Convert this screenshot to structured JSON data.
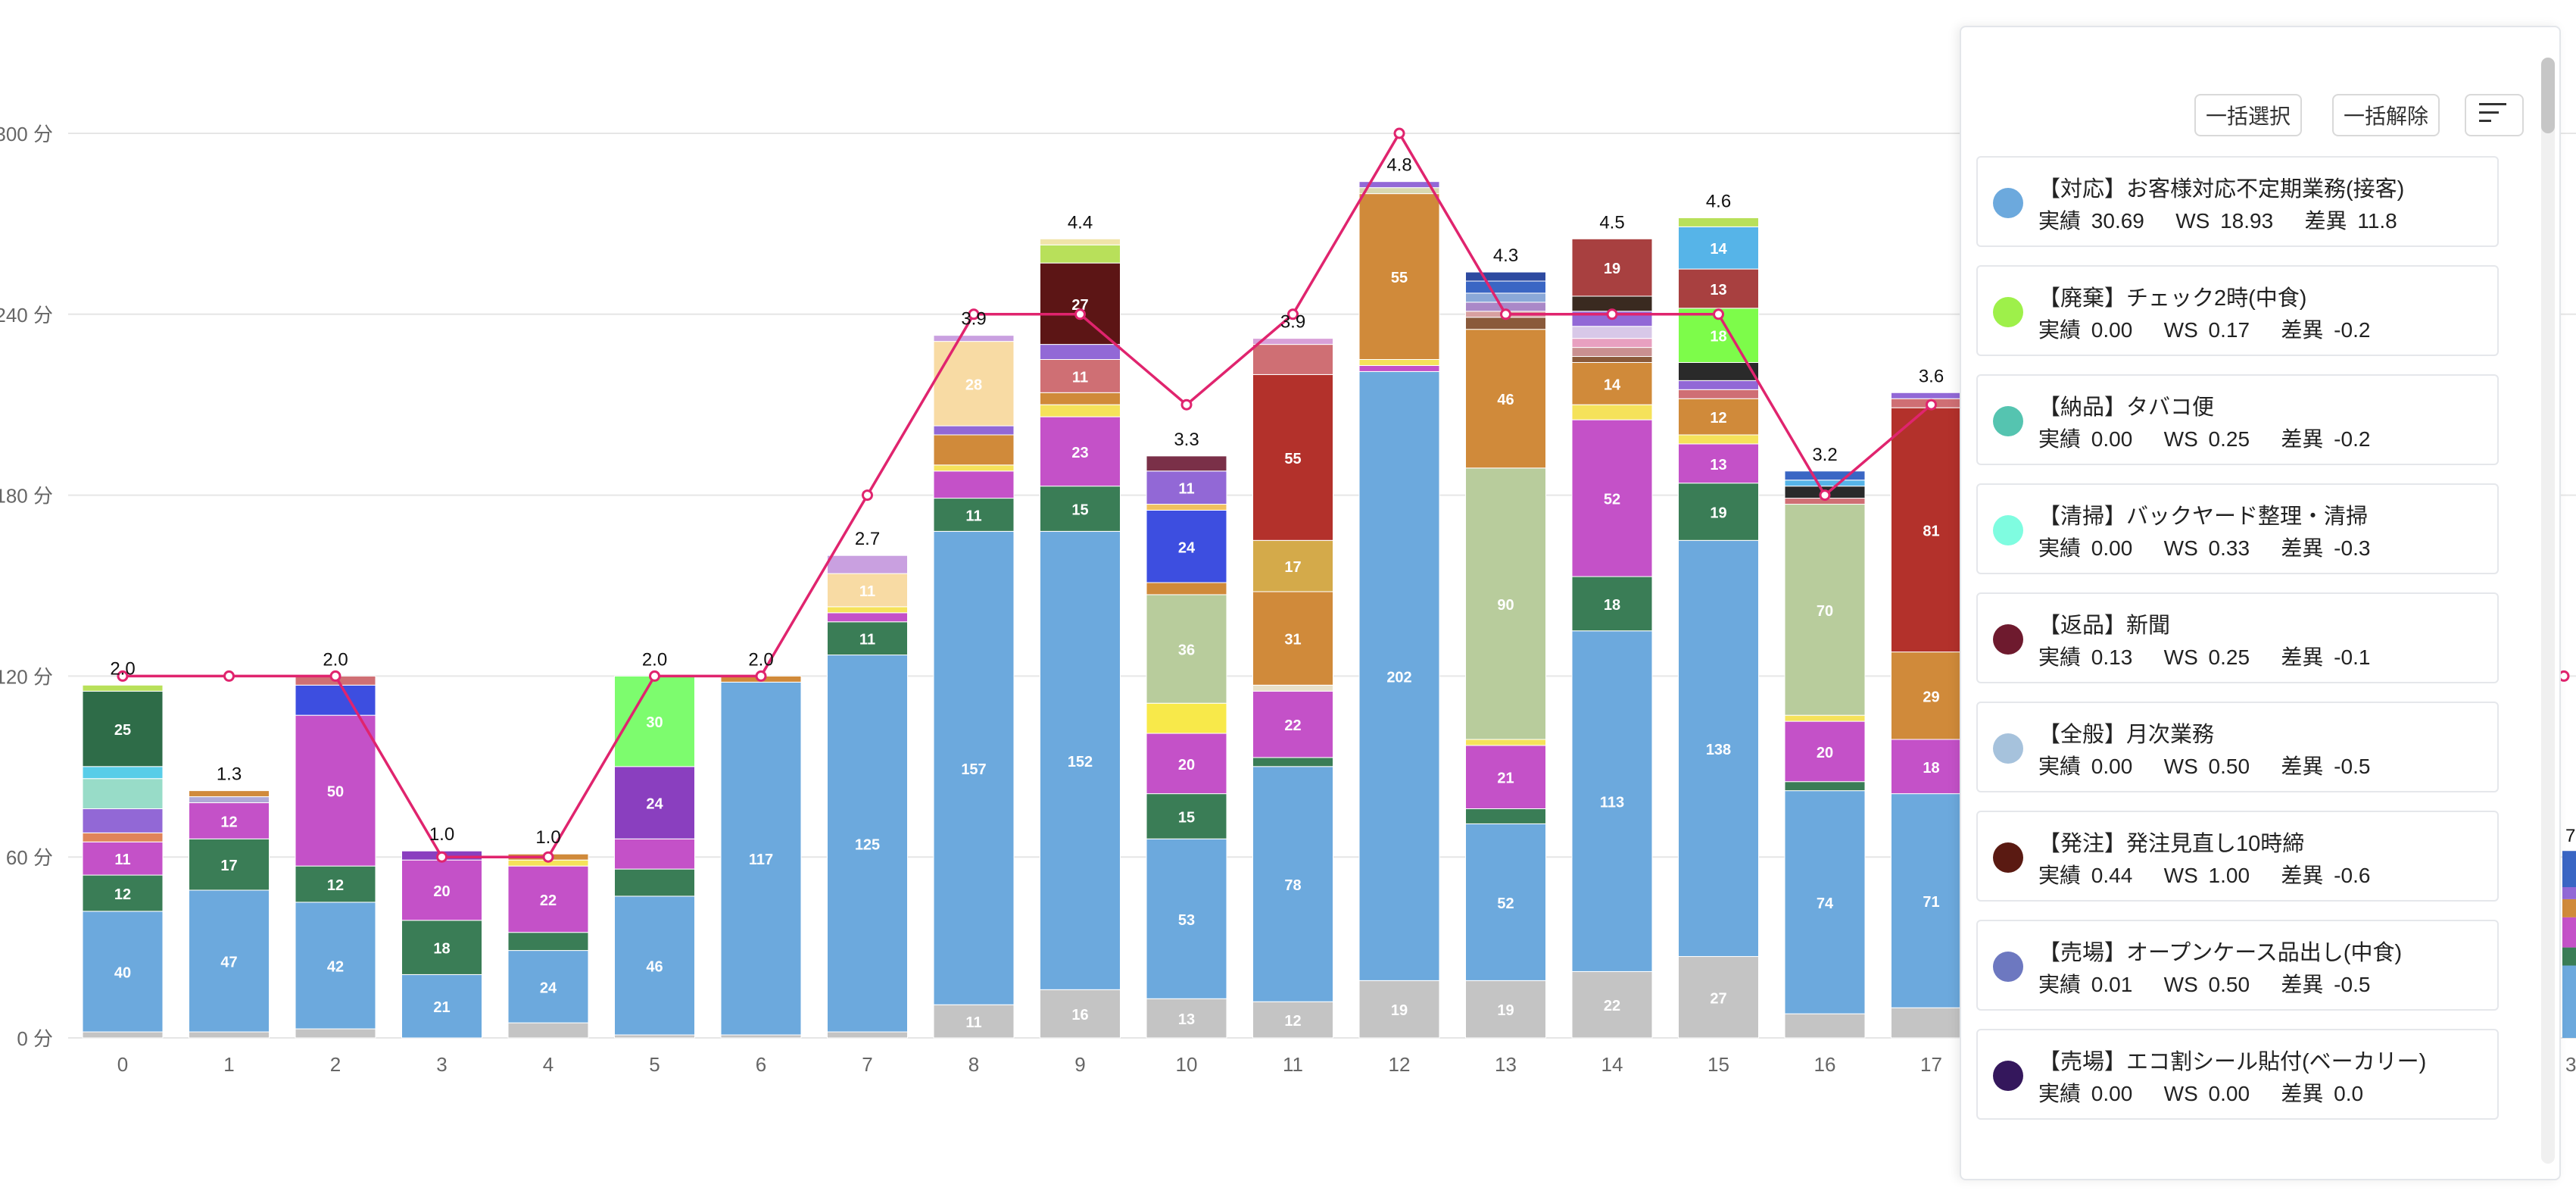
{
  "panel": {
    "select_all": "一括選択",
    "deselect_all": "一括解除",
    "sort_icon": "sort-lines-icon",
    "items": [
      {
        "title": "【対応】お客様対応不定期業務(接客)",
        "actual_label": "実績",
        "actual": "30.69",
        "ws_label": "WS",
        "ws": "18.93",
        "diff_label": "差異",
        "diff": "11.8",
        "color": "#6ca9dd"
      },
      {
        "title": "【廃棄】チェック2時(中食)",
        "actual_label": "実績",
        "actual": "0.00",
        "ws_label": "WS",
        "ws": "0.17",
        "diff_label": "差異",
        "diff": "-0.2",
        "color": "#9ef04a"
      },
      {
        "title": "【納品】タバコ便",
        "actual_label": "実績",
        "actual": "0.00",
        "ws_label": "WS",
        "ws": "0.25",
        "diff_label": "差異",
        "diff": "-0.2",
        "color": "#55c4b0"
      },
      {
        "title": "【清掃】バックヤード整理・清掃",
        "actual_label": "実績",
        "actual": "0.00",
        "ws_label": "WS",
        "ws": "0.33",
        "diff_label": "差異",
        "diff": "-0.3",
        "color": "#7ffce0"
      },
      {
        "title": "【返品】新聞",
        "actual_label": "実績",
        "actual": "0.13",
        "ws_label": "WS",
        "ws": "0.25",
        "diff_label": "差異",
        "diff": "-0.1",
        "color": "#6e1a2e"
      },
      {
        "title": "【全般】月次業務",
        "actual_label": "実績",
        "actual": "0.00",
        "ws_label": "WS",
        "ws": "0.50",
        "diff_label": "差異",
        "diff": "-0.5",
        "color": "#a6c2dc"
      },
      {
        "title": "【発注】発注見直し10時締",
        "actual_label": "実績",
        "actual": "0.44",
        "ws_label": "WS",
        "ws": "1.00",
        "diff_label": "差異",
        "diff": "-0.6",
        "color": "#5a1a12"
      },
      {
        "title": "【売場】オープンケース品出し(中食)",
        "actual_label": "実績",
        "actual": "0.01",
        "ws_label": "WS",
        "ws": "0.50",
        "diff_label": "差異",
        "diff": "-0.5",
        "color": "#6d78c0"
      },
      {
        "title": "【売場】エコ割シール貼付(ベーカリー)",
        "actual_label": "実績",
        "actual": "0.00",
        "ws_label": "WS",
        "ws": "0.00",
        "diff_label": "差異",
        "diff": "0.0",
        "color": "#34175c"
      }
    ]
  },
  "chart_data": {
    "type": "bar",
    "stacked": true,
    "y_unit": "分",
    "ylim": [
      0,
      300
    ],
    "yticks": [
      0,
      60,
      120,
      180,
      240,
      300
    ],
    "y_tick_labels": [
      "0 分",
      "60 分",
      "120 分",
      "180 分",
      "240 分",
      "300 分"
    ],
    "categories": [
      "0",
      "1",
      "2",
      "3",
      "4",
      "5",
      "6",
      "7",
      "8",
      "9",
      "10",
      "11",
      "12",
      "13",
      "14",
      "15",
      "16",
      "17"
    ],
    "partial_right_labels": [
      "7",
      "3"
    ],
    "bars": [
      {
        "total_label": "2.0",
        "segments": [
          [
            2,
            "#c4c4c4",
            ""
          ],
          [
            40,
            "#6ca9dd",
            "40"
          ],
          [
            12,
            "#3a7d56",
            "12"
          ],
          [
            11,
            "#c451c8",
            "11"
          ],
          [
            3,
            "#e0845a",
            ""
          ],
          [
            8,
            "#9268d6",
            ""
          ],
          [
            10,
            "#98dcc8",
            ""
          ],
          [
            4,
            "#58cde8",
            ""
          ],
          [
            25,
            "#2e6c48",
            "25"
          ],
          [
            2,
            "#b8e05a",
            ""
          ]
        ]
      },
      {
        "total_label": "1.3",
        "segments": [
          [
            2,
            "#c4c4c4",
            ""
          ],
          [
            47,
            "#6ca9dd",
            "47"
          ],
          [
            17,
            "#3a7d56",
            "17"
          ],
          [
            12,
            "#c451c8",
            "12"
          ],
          [
            2,
            "#b0a8d6",
            ""
          ],
          [
            2,
            "#d08a3a",
            ""
          ]
        ]
      },
      {
        "total_label": "2.0",
        "segments": [
          [
            3,
            "#c4c4c4",
            ""
          ],
          [
            42,
            "#6ca9dd",
            "42"
          ],
          [
            12,
            "#3a7d56",
            "12"
          ],
          [
            50,
            "#c451c8",
            "50"
          ],
          [
            10,
            "#3d4ee0",
            ""
          ],
          [
            3,
            "#cf6f74",
            ""
          ]
        ]
      },
      {
        "total_label": "1.0",
        "segments": [
          [
            21,
            "#6ca9dd",
            "21"
          ],
          [
            18,
            "#3a7d56",
            "18"
          ],
          [
            20,
            "#c451c8",
            "20"
          ],
          [
            3,
            "#8a3fbf",
            ""
          ]
        ]
      },
      {
        "total_label": "1.0",
        "segments": [
          [
            5,
            "#c4c4c4",
            ""
          ],
          [
            24,
            "#6ca9dd",
            "24"
          ],
          [
            6,
            "#3a7d56",
            ""
          ],
          [
            22,
            "#c451c8",
            "22"
          ],
          [
            2,
            "#f5e25a",
            ""
          ],
          [
            2,
            "#d08a3a",
            ""
          ]
        ]
      },
      {
        "total_label": "2.0",
        "segments": [
          [
            1,
            "#c4c4c4",
            ""
          ],
          [
            46,
            "#6ca9dd",
            "46"
          ],
          [
            9,
            "#3a7d56",
            ""
          ],
          [
            10,
            "#c451c8",
            ""
          ],
          [
            24,
            "#8a3fbf",
            "24"
          ],
          [
            30,
            "#7dfc6e",
            "30"
          ]
        ]
      },
      {
        "total_label": "2.0",
        "segments": [
          [
            1,
            "#c4c4c4",
            ""
          ],
          [
            117,
            "#6ca9dd",
            "117"
          ],
          [
            2,
            "#d08a3a",
            ""
          ]
        ]
      },
      {
        "total_label": "2.7",
        "segments": [
          [
            2,
            "#c4c4c4",
            ""
          ],
          [
            125,
            "#6ca9dd",
            "125"
          ],
          [
            11,
            "#3a7d56",
            "11"
          ],
          [
            3,
            "#c451c8",
            ""
          ],
          [
            2,
            "#f5e25a",
            ""
          ],
          [
            11,
            "#f8dba4",
            "11"
          ],
          [
            6,
            "#c9a0e0",
            ""
          ]
        ]
      },
      {
        "total_label": "3.9",
        "segments": [
          [
            11,
            "#c4c4c4",
            "11"
          ],
          [
            157,
            "#6ca9dd",
            "157"
          ],
          [
            11,
            "#3a7d56",
            "11"
          ],
          [
            9,
            "#c451c8",
            ""
          ],
          [
            2,
            "#f5e25a",
            ""
          ],
          [
            10,
            "#d08a3a",
            ""
          ],
          [
            3,
            "#9268d6",
            ""
          ],
          [
            28,
            "#f8dba4",
            "28"
          ],
          [
            2,
            "#c9a0e0",
            ""
          ]
        ]
      },
      {
        "total_label": "4.4",
        "segments": [
          [
            16,
            "#c4c4c4",
            "16"
          ],
          [
            152,
            "#6ca9dd",
            "152"
          ],
          [
            15,
            "#3a7d56",
            "15"
          ],
          [
            23,
            "#c451c8",
            "23"
          ],
          [
            4,
            "#f5e25a",
            ""
          ],
          [
            4,
            "#d08a3a",
            ""
          ],
          [
            11,
            "#cf6f74",
            "11"
          ],
          [
            5,
            "#9268d6",
            ""
          ],
          [
            27,
            "#5c1515",
            "27"
          ],
          [
            6,
            "#b8e05a",
            ""
          ],
          [
            2,
            "#f0e4a8",
            ""
          ]
        ]
      },
      {
        "total_label": "3.3",
        "segments": [
          [
            13,
            "#c4c4c4",
            "13"
          ],
          [
            53,
            "#6ca9dd",
            "53"
          ],
          [
            15,
            "#3a7d56",
            "15"
          ],
          [
            20,
            "#c451c8",
            "20"
          ],
          [
            10,
            "#f8e94a",
            ""
          ],
          [
            36,
            "#b8cc9c",
            "36"
          ],
          [
            4,
            "#d08a3a",
            ""
          ],
          [
            24,
            "#3d4ee0",
            "24"
          ],
          [
            2,
            "#f0c060",
            ""
          ],
          [
            11,
            "#9268d6",
            "11"
          ],
          [
            5,
            "#7a3048",
            ""
          ]
        ]
      },
      {
        "total_label": "3.9",
        "segments": [
          [
            12,
            "#c4c4c4",
            "12"
          ],
          [
            78,
            "#6ca9dd",
            "78"
          ],
          [
            3,
            "#3a7d56",
            ""
          ],
          [
            22,
            "#c451c8",
            "22"
          ],
          [
            2,
            "#e8e0c8",
            ""
          ],
          [
            31,
            "#d08a3a",
            "31"
          ],
          [
            17,
            "#d4aa4a",
            "17"
          ],
          [
            55,
            "#b3312b",
            "55"
          ],
          [
            10,
            "#cf6f74",
            ""
          ],
          [
            2,
            "#d8a0d8",
            ""
          ]
        ]
      },
      {
        "total_label": "4.8",
        "segments": [
          [
            19,
            "#c4c4c4",
            "19"
          ],
          [
            202,
            "#6ca9dd",
            "202"
          ],
          [
            2,
            "#c451c8",
            ""
          ],
          [
            2,
            "#f5e25a",
            ""
          ],
          [
            55,
            "#d08a3a",
            "55"
          ],
          [
            2,
            "#d8d8b0",
            ""
          ],
          [
            2,
            "#9268d6",
            ""
          ]
        ]
      },
      {
        "total_label": "4.3",
        "segments": [
          [
            19,
            "#c4c4c4",
            "19"
          ],
          [
            52,
            "#6ca9dd",
            "52"
          ],
          [
            5,
            "#3a7d56",
            ""
          ],
          [
            21,
            "#c451c8",
            "21"
          ],
          [
            2,
            "#f5e25a",
            ""
          ],
          [
            90,
            "#b8cc9c",
            "90"
          ],
          [
            46,
            "#d08a3a",
            "46"
          ],
          [
            4,
            "#8a5a3a",
            ""
          ],
          [
            2,
            "#d8a0a0",
            ""
          ],
          [
            3,
            "#aa88c8",
            ""
          ],
          [
            3,
            "#8aa8d8",
            ""
          ],
          [
            4,
            "#3a66c4",
            ""
          ],
          [
            3,
            "#2d4aa0",
            ""
          ]
        ]
      },
      {
        "total_label": "4.5",
        "segments": [
          [
            22,
            "#c4c4c4",
            "22"
          ],
          [
            113,
            "#6ca9dd",
            "113"
          ],
          [
            18,
            "#3a7d56",
            "18"
          ],
          [
            52,
            "#c451c8",
            "52"
          ],
          [
            5,
            "#f5e25a",
            ""
          ],
          [
            14,
            "#d08a3a",
            "14"
          ],
          [
            2,
            "#8a5a3a",
            ""
          ],
          [
            3,
            "#c99090",
            ""
          ],
          [
            3,
            "#e8a0c0",
            ""
          ],
          [
            4,
            "#d8c8e8",
            ""
          ],
          [
            5,
            "#9268d6",
            ""
          ],
          [
            5,
            "#3a2a20",
            ""
          ],
          [
            19,
            "#a84040",
            "19"
          ]
        ]
      },
      {
        "total_label": "4.6",
        "segments": [
          [
            27,
            "#c4c4c4",
            "27"
          ],
          [
            138,
            "#6ca9dd",
            "138"
          ],
          [
            19,
            "#3a7d56",
            "19"
          ],
          [
            13,
            "#c451c8",
            "13"
          ],
          [
            3,
            "#f5e25a",
            ""
          ],
          [
            12,
            "#d08a3a",
            "12"
          ],
          [
            3,
            "#cf6f74",
            ""
          ],
          [
            3,
            "#9268d6",
            ""
          ],
          [
            6,
            "#2a2a2a",
            ""
          ],
          [
            18,
            "#7dfc4a",
            "18"
          ],
          [
            13,
            "#a84040",
            "13"
          ],
          [
            14,
            "#56b4e8",
            "14"
          ],
          [
            3,
            "#b8e05a",
            ""
          ]
        ]
      },
      {
        "total_label": "3.2",
        "segments": [
          [
            8,
            "#c4c4c4",
            ""
          ],
          [
            74,
            "#6ca9dd",
            "74"
          ],
          [
            3,
            "#3a7d56",
            ""
          ],
          [
            20,
            "#c451c8",
            "20"
          ],
          [
            2,
            "#f5e25a",
            ""
          ],
          [
            70,
            "#b8cc9c",
            "70"
          ],
          [
            2,
            "#cf6f74",
            ""
          ],
          [
            4,
            "#2a2a2a",
            ""
          ],
          [
            2,
            "#56b4e8",
            ""
          ],
          [
            3,
            "#3a66c4",
            ""
          ]
        ]
      },
      {
        "total_label": "3.6",
        "segments": [
          [
            10,
            "#c4c4c4",
            ""
          ],
          [
            71,
            "#6ca9dd",
            "71"
          ],
          [
            18,
            "#c451c8",
            "18"
          ],
          [
            29,
            "#d08a3a",
            "29"
          ],
          [
            81,
            "#b3312b",
            "81"
          ],
          [
            3,
            "#cf6f74",
            ""
          ],
          [
            2,
            "#9268d6",
            ""
          ]
        ]
      }
    ],
    "line": {
      "color": "#e0246e",
      "values": [
        120,
        120,
        120,
        60,
        60,
        120,
        120,
        180,
        240,
        240,
        210,
        240,
        300,
        240,
        240,
        240,
        180,
        210
      ]
    },
    "partial_right_segments": [
      [
        24,
        "#6ca9dd"
      ],
      [
        6,
        "#3a7d56"
      ],
      [
        10,
        "#c451c8"
      ],
      [
        6,
        "#d08a3a"
      ],
      [
        4,
        "#9268d6"
      ],
      [
        12,
        "#3a66c4"
      ]
    ]
  }
}
